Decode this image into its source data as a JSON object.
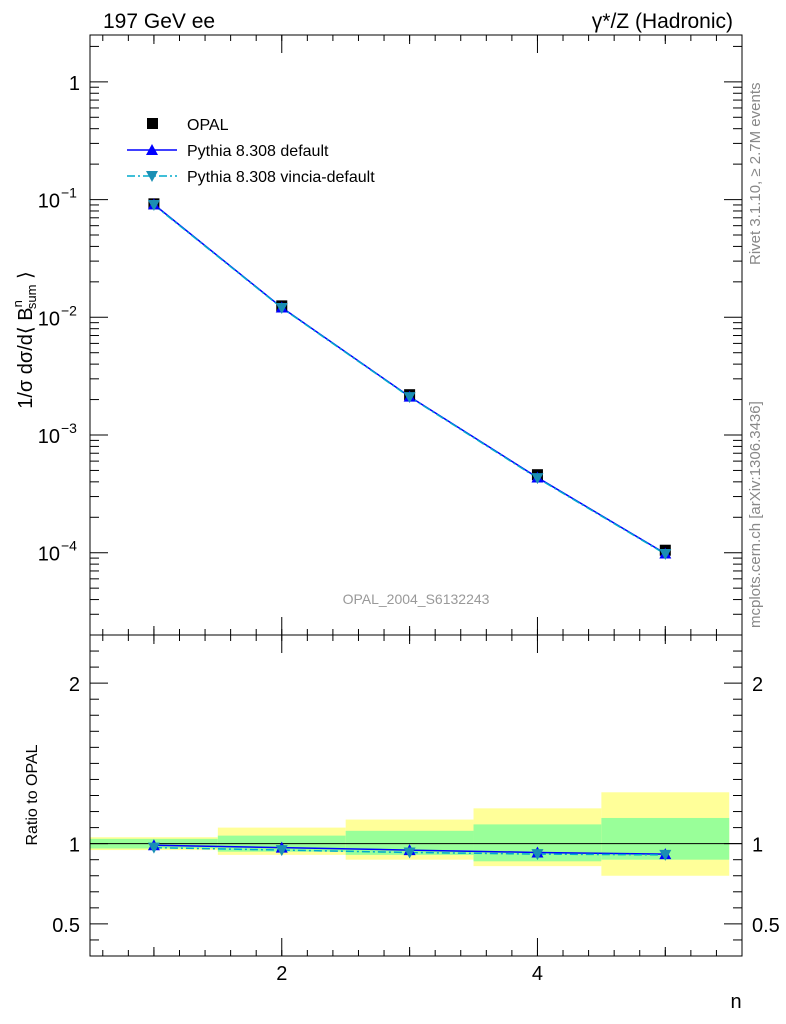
{
  "header": {
    "left": "197 GeV ee",
    "right": "γ*/Z (Hadronic)"
  },
  "side_labels": {
    "top": "Rivet 3.1.10, ≥ 2.7M events",
    "bottom": "mcplots.cern.ch [arXiv:1306.3436]"
  },
  "watermark": "OPAL_2004_S6132243",
  "colors": {
    "data": "#000000",
    "pythia_default": "#0000ff",
    "pythia_vincia": "#00aacc",
    "band_inner": "#99ff99",
    "band_outer": "#ffff99",
    "vincia_marker": "#1a8fb4"
  },
  "chart_data": [
    {
      "type": "line",
      "ylabel": "1/σ dσ/d⟨ B_sum^n ⟩",
      "y_scale": "log",
      "ylim": [
        2e-05,
        2.5
      ],
      "xlim": [
        0.5,
        5.6
      ],
      "y_ticks": [
        "1",
        "10^-1",
        "10^-2",
        "10^-3",
        "10^-4"
      ],
      "y_ticks_values": [
        1,
        0.1,
        0.01,
        0.001,
        0.0001
      ],
      "x": [
        1,
        2,
        3,
        4,
        5
      ],
      "legend_position": "top-left",
      "series": [
        {
          "name": "OPAL",
          "style": "square",
          "values": [
            0.092,
            0.0125,
            0.0022,
            0.00046,
            0.000105
          ]
        },
        {
          "name": "Pythia 8.308 default",
          "style": "triangle-up-solid",
          "values": [
            0.091,
            0.0121,
            0.00212,
            0.000435,
            9.85e-05
          ]
        },
        {
          "name": "Pythia 8.308 vincia-default",
          "style": "triangle-down-dashdot",
          "values": [
            0.09,
            0.012,
            0.0021,
            0.00043,
            9.75e-05
          ]
        }
      ]
    },
    {
      "type": "line",
      "ylabel": "Ratio to OPAL",
      "xlabel": "n",
      "ylim": [
        0.3,
        2.3
      ],
      "xlim": [
        0.5,
        5.6
      ],
      "y_ticks": [
        "0.5",
        "1",
        "2"
      ],
      "y_ticks_values": [
        0.5,
        1,
        2
      ],
      "x_ticks": [
        "2",
        "4"
      ],
      "x_ticks_values": [
        2,
        4
      ],
      "bins": [
        [
          0.5,
          1.5
        ],
        [
          1.5,
          2.5
        ],
        [
          2.5,
          3.5
        ],
        [
          3.5,
          4.5
        ],
        [
          4.5,
          5.5
        ]
      ],
      "band_inner": [
        [
          0.97,
          1.03
        ],
        [
          0.95,
          1.05
        ],
        [
          0.93,
          1.08
        ],
        [
          0.89,
          1.12
        ],
        [
          0.9,
          1.16
        ]
      ],
      "band_outer": [
        [
          0.96,
          1.04
        ],
        [
          0.93,
          1.1
        ],
        [
          0.9,
          1.15
        ],
        [
          0.86,
          1.22
        ],
        [
          0.8,
          1.32
        ]
      ],
      "x": [
        1,
        2,
        3,
        4,
        5
      ],
      "series": [
        {
          "name": "Pythia 8.308 default",
          "values": [
            0.99,
            0.975,
            0.96,
            0.945,
            0.935
          ]
        },
        {
          "name": "Pythia 8.308 vincia-default",
          "values": [
            0.975,
            0.96,
            0.945,
            0.935,
            0.93
          ]
        }
      ]
    }
  ]
}
